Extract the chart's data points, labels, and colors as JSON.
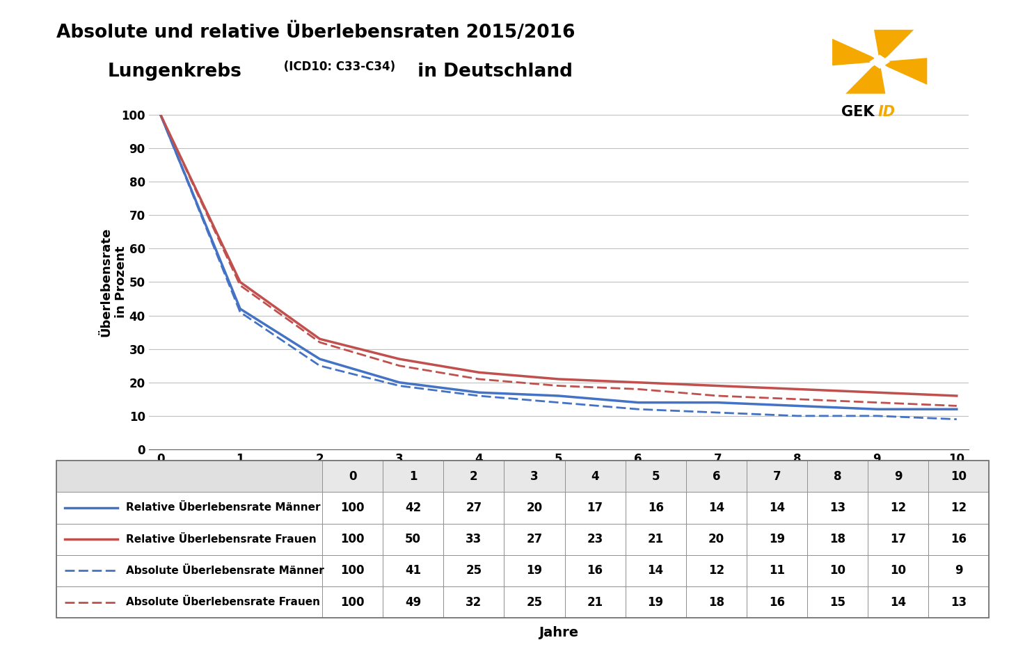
{
  "title_line1": "Absolute und relative Überlebensraten 2015/2016",
  "title_line2_main": "Lungenkrebs",
  "title_line2_icd": " (ICD10: C33-C34)",
  "title_line2_end": " in Deutschland",
  "xlabel": "Jahre",
  "ylabel": "Überlebensrate\nin Prozent",
  "years": [
    0,
    1,
    2,
    3,
    4,
    5,
    6,
    7,
    8,
    9,
    10
  ],
  "rel_maenner": [
    100,
    42,
    27,
    20,
    17,
    16,
    14,
    14,
    13,
    12,
    12
  ],
  "rel_frauen": [
    100,
    50,
    33,
    27,
    23,
    21,
    20,
    19,
    18,
    17,
    16
  ],
  "abs_maenner": [
    100,
    41,
    25,
    19,
    16,
    14,
    12,
    11,
    10,
    10,
    9
  ],
  "abs_frauen": [
    100,
    49,
    32,
    25,
    21,
    19,
    18,
    16,
    15,
    14,
    13
  ],
  "color_maenner": "#4472C4",
  "color_frauen": "#C0504D",
  "ylim": [
    0,
    100
  ],
  "yticks": [
    0,
    10,
    20,
    30,
    40,
    50,
    60,
    70,
    80,
    90,
    100
  ],
  "xticks": [
    0,
    1,
    2,
    3,
    4,
    5,
    6,
    7,
    8,
    9,
    10
  ],
  "legend_labels": [
    "Relative Überlebensrate Männer",
    "Relative Überlebensrate Frauen",
    "Absolute Überlebensrate Männer",
    "Absolute Überlebensrate Frauen"
  ],
  "table_header": [
    "0",
    "1",
    "2",
    "3",
    "4",
    "5",
    "6",
    "7",
    "8",
    "9",
    "10"
  ],
  "bg_color": "#ffffff",
  "grid_color": "#c0c0c0",
  "logo_orange": "#F5A800",
  "logo_text_gek": "GEK",
  "logo_text_id": "ID",
  "gekid_text_color": "#F5A800"
}
